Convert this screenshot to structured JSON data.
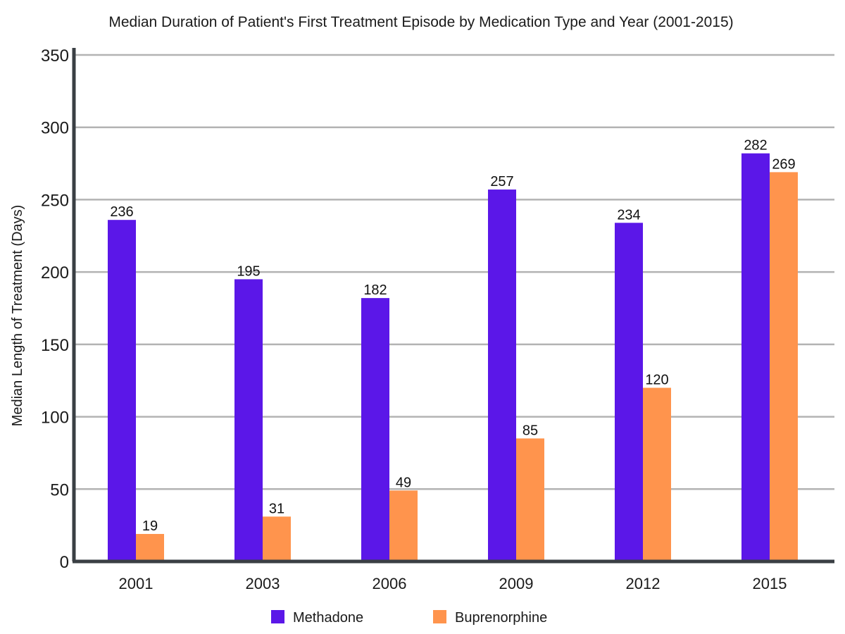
{
  "chart_data": {
    "type": "bar",
    "title": "Median Duration of Patient's First Treatment Episode by Medication Type and Year (2001-2015)",
    "xlabel": "",
    "ylabel": "Median Length of Treatment (Days)",
    "categories": [
      "2001",
      "2003",
      "2006",
      "2009",
      "2012",
      "2015"
    ],
    "series": [
      {
        "name": "Methadone",
        "color": "#5b17e8",
        "values": [
          236,
          195,
          182,
          257,
          234,
          282
        ]
      },
      {
        "name": "Buprenorphine",
        "color": "#ff944d",
        "values": [
          19,
          31,
          49,
          85,
          120,
          269
        ]
      }
    ],
    "ylim": [
      0,
      350
    ],
    "yticks": [
      "0",
      "50",
      "100",
      "150",
      "200",
      "250",
      "300",
      "350"
    ],
    "grid": true,
    "legend": "bottom-center",
    "colors": {
      "grid": "#b3b3b3",
      "axis": "#3a3f44"
    }
  }
}
